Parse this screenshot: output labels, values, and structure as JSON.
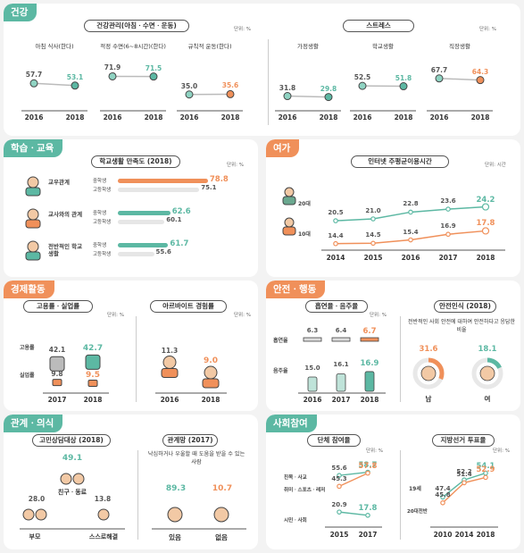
{
  "colors": {
    "green": "#5cb8a3",
    "orange": "#f0905a",
    "dark": "#555555"
  },
  "health": {
    "tag": "건강",
    "unit": "단위: %",
    "title_left": "건강관리(아침ㆍ수면ㆍ운동)",
    "title_right": "스트레스"
  },
  "study": {
    "tag": "학습ㆍ교육",
    "unit": "단위: %",
    "title": "학교생활 만족도 (2018)",
    "cats": [
      "교우관계",
      "교사와의 관계",
      "전반적인 학교생활"
    ],
    "mid": "중학생",
    "high": "고등학생"
  },
  "leisure": {
    "tag": "여가",
    "unit": "단위: 시간",
    "title": "인터넷 주평균이용시간",
    "rows": [
      "20대",
      "10대"
    ]
  },
  "economy": {
    "tag": "경제활동",
    "unit": "단위: %",
    "title_left": "고용률ㆍ실업률",
    "title_right": "아르바이트 경험률",
    "row1": "고용률",
    "row2": "실업률"
  },
  "safety": {
    "tag": "안전ㆍ행동",
    "unit": "단위: %",
    "title_left": "흡연율ㆍ음주율",
    "title_right": "안전인식 (2018)",
    "row1": "흡연율",
    "row2": "음주율",
    "desc": "전반적인 사회 안전에 대하여 안전하다고 응답한 비율",
    "male": "남",
    "female": "여"
  },
  "relation": {
    "tag": "관계ㆍ의식",
    "title_left": "고민상담대상 (2018)",
    "title_right": "관계망 (2017)",
    "desc": "낙심하거나 우울할 때 도움을 받을 수 있는 사람",
    "friend": "친구ㆍ동료",
    "parent": "부모",
    "self": "스스로해결",
    "yes": "있음",
    "no": "없음"
  },
  "social": {
    "tag": "사회참여",
    "unit": "단위: %",
    "title_left": "단체 참여율",
    "title_right": "지방선거 투표율",
    "groups": [
      "친목ㆍ사교",
      "취미ㆍ스포츠ㆍ레저",
      "시민ㆍ사회"
    ],
    "v19": "19세",
    "v20": "20대전반"
  },
  "chart_data": [
    {
      "type": "line",
      "title": "건강관리(아침ㆍ수면ㆍ운동)",
      "x": [
        "2016",
        "2018"
      ],
      "series": [
        {
          "name": "아침 식사(한다)",
          "values": [
            57.7,
            53.1
          ]
        },
        {
          "name": "적정 수면(6~8시간)(한다)",
          "values": [
            71.9,
            71.5
          ]
        },
        {
          "name": "규칙적 운동(한다)",
          "values": [
            35.0,
            35.6
          ]
        }
      ]
    },
    {
      "type": "line",
      "title": "스트레스",
      "x": [
        "2016",
        "2018"
      ],
      "series": [
        {
          "name": "가정생활",
          "values": [
            31.8,
            29.8
          ]
        },
        {
          "name": "학교생활",
          "values": [
            52.5,
            51.8
          ]
        },
        {
          "name": "직장생활",
          "values": [
            67.7,
            64.3
          ]
        }
      ]
    },
    {
      "type": "bar",
      "title": "학교생활 만족도 (2018)",
      "categories": [
        "교우관계",
        "교사와의 관계",
        "전반적인 학교생활"
      ],
      "series": [
        {
          "name": "중학생",
          "values": [
            78.8,
            62.6,
            61.7
          ]
        },
        {
          "name": "고등학생",
          "values": [
            75.1,
            60.1,
            55.6
          ]
        }
      ]
    },
    {
      "type": "line",
      "title": "인터넷 주평균이용시간",
      "x": [
        "2014",
        "2015",
        "2016",
        "2017",
        "2018"
      ],
      "series": [
        {
          "name": "20대",
          "values": [
            20.5,
            21.0,
            22.8,
            23.6,
            24.2
          ]
        },
        {
          "name": "10대",
          "values": [
            14.4,
            14.5,
            15.4,
            16.9,
            17.8
          ]
        }
      ]
    },
    {
      "type": "bar",
      "title": "고용률ㆍ실업률",
      "categories": [
        "2017",
        "2018"
      ],
      "series": [
        {
          "name": "고용률",
          "values": [
            42.1,
            42.7
          ]
        },
        {
          "name": "실업률",
          "values": [
            9.8,
            9.5
          ]
        }
      ]
    },
    {
      "type": "bar",
      "title": "아르바이트 경험률",
      "categories": [
        "2016",
        "2018"
      ],
      "values": [
        11.3,
        9.0
      ]
    },
    {
      "type": "bar",
      "title": "흡연율ㆍ음주율",
      "categories": [
        "2016",
        "2017",
        "2018"
      ],
      "series": [
        {
          "name": "흡연율",
          "values": [
            6.3,
            6.4,
            6.7
          ]
        },
        {
          "name": "음주율",
          "values": [
            15.0,
            16.1,
            16.9
          ]
        }
      ]
    },
    {
      "type": "pie",
      "title": "안전인식 (2018)",
      "categories": [
        "남",
        "여"
      ],
      "values": [
        31.6,
        18.1
      ]
    },
    {
      "type": "bar",
      "title": "고민상담대상 (2018)",
      "categories": [
        "친구ㆍ동료",
        "부모",
        "스스로해결"
      ],
      "values": [
        49.1,
        28.0,
        13.8
      ]
    },
    {
      "type": "bar",
      "title": "관계망 (2017)",
      "categories": [
        "있음",
        "없음"
      ],
      "values": [
        89.3,
        10.7
      ]
    },
    {
      "type": "line",
      "title": "단체 참여율",
      "x": [
        "2015",
        "2017"
      ],
      "series": [
        {
          "name": "친목ㆍ사교",
          "values": [
            55.6,
            58.7
          ]
        },
        {
          "name": "취미ㆍ스포츠ㆍ레저",
          "values": [
            45.3,
            57.8
          ]
        },
        {
          "name": "시민ㆍ사회",
          "values": [
            20.9,
            17.8
          ]
        }
      ]
    },
    {
      "type": "line",
      "title": "지방선거 투표율",
      "x": [
        "2010",
        "2014",
        "2018"
      ],
      "series": [
        {
          "name": "19세",
          "values": [
            47.4,
            52.2,
            54.1
          ]
        },
        {
          "name": "20대전반",
          "values": [
            45.8,
            51.4,
            52.9
          ]
        }
      ]
    }
  ]
}
